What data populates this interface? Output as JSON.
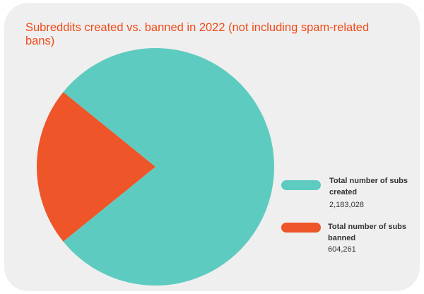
{
  "chart_data": {
    "type": "pie",
    "title": "Subreddits created vs. banned in 2022 (not including spam-related bans)",
    "series": [
      {
        "name": "Total number of subs created",
        "value": 2183028,
        "value_label": "2,183,028",
        "color": "#5ecbc0"
      },
      {
        "name": "Total number of subs banned",
        "value": 604261,
        "value_label": "604,261",
        "color": "#ee5528"
      }
    ],
    "legend_position": "right"
  }
}
